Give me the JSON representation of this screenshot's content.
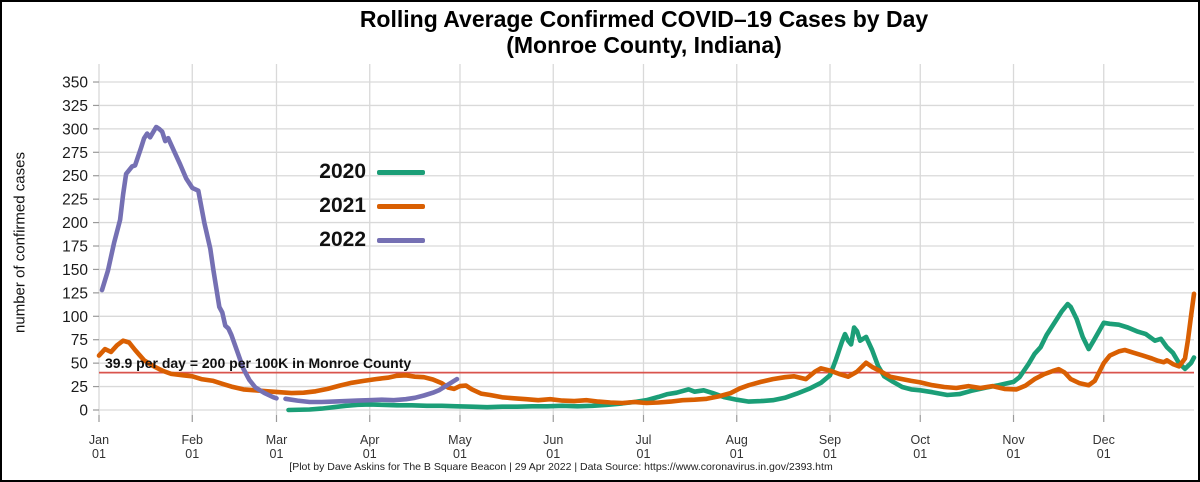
{
  "title": {
    "line1": "Rolling Average Confirmed COVID–19 Cases by Day",
    "line2": "(Monroe County, Indiana)"
  },
  "caption": "[Plot by Dave Askins for The B Square Beacon | 29 Apr 2022 | Data Source: https://www.coronavirus.in.gov/2393.htm",
  "annotation_text": "39.9 per day = 200 per 100K in Monroe County",
  "chart_data": {
    "type": "line",
    "title": "Rolling Average Confirmed COVID–19 Cases by Day (Monroe County, Indiana)",
    "xlabel": "",
    "ylabel": "number of confirmed cases",
    "ylim": [
      0,
      350
    ],
    "yticks": [
      0,
      25,
      50,
      75,
      100,
      125,
      150,
      175,
      200,
      225,
      250,
      275,
      300,
      325,
      350
    ],
    "grid": true,
    "legend_position": "inside-upper-left",
    "xticks": [
      {
        "month": "Jan",
        "day_label": "01",
        "day": 1
      },
      {
        "month": "Feb",
        "day_label": "01",
        "day": 32
      },
      {
        "month": "Mar",
        "day_label": "01",
        "day": 60
      },
      {
        "month": "Apr",
        "day_label": "01",
        "day": 91
      },
      {
        "month": "May",
        "day_label": "01",
        "day": 121
      },
      {
        "month": "Jun",
        "day_label": "01",
        "day": 152
      },
      {
        "month": "Jul",
        "day_label": "01",
        "day": 182
      },
      {
        "month": "Aug",
        "day_label": "01",
        "day": 213
      },
      {
        "month": "Sep",
        "day_label": "01",
        "day": 244
      },
      {
        "month": "Oct",
        "day_label": "01",
        "day": 274
      },
      {
        "month": "Nov",
        "day_label": "01",
        "day": 305
      },
      {
        "month": "Dec",
        "day_label": "01",
        "day": 335
      }
    ],
    "reference_line": {
      "value": 39.9,
      "color": "#d9544d",
      "label": "39.9 per day = 200 per 100K in Monroe County"
    },
    "series": [
      {
        "name": "2020",
        "color": "#1b9e77",
        "segments": [
          [
            [
              64,
              0
            ],
            [
              71,
              0.5
            ],
            [
              75,
              1.5
            ],
            [
              79,
              3
            ],
            [
              83,
              4.5
            ],
            [
              87,
              5.5
            ],
            [
              91,
              6
            ],
            [
              95,
              5.5
            ],
            [
              100,
              5
            ],
            [
              105,
              5
            ],
            [
              110,
              4.5
            ],
            [
              115,
              4.5
            ],
            [
              120,
              4
            ],
            [
              125,
              3.5
            ],
            [
              130,
              3
            ],
            [
              135,
              3.5
            ],
            [
              140,
              3.5
            ],
            [
              145,
              4
            ],
            [
              150,
              4
            ],
            [
              155,
              4.5
            ],
            [
              160,
              4
            ],
            [
              165,
              4.5
            ],
            [
              170,
              5.5
            ],
            [
              175,
              7
            ],
            [
              179,
              8.5
            ],
            [
              183,
              10.5
            ],
            [
              187,
              14
            ],
            [
              190,
              17
            ],
            [
              193,
              18.5
            ],
            [
              197,
              22
            ],
            [
              199,
              19.5
            ],
            [
              202,
              21
            ],
            [
              205,
              18
            ],
            [
              209,
              13.5
            ],
            [
              213,
              11
            ],
            [
              217,
              9
            ],
            [
              221,
              9.5
            ],
            [
              225,
              10.5
            ],
            [
              229,
              13
            ],
            [
              233,
              17.5
            ],
            [
              237,
              22.5
            ],
            [
              241,
              29
            ],
            [
              244,
              37
            ],
            [
              246,
              54
            ],
            [
              248,
              73
            ],
            [
              249,
              81
            ],
            [
              250,
              74
            ],
            [
              251,
              70
            ],
            [
              252,
              88
            ],
            [
              253,
              84
            ],
            [
              254,
              74
            ],
            [
              256,
              78
            ],
            [
              258,
              64
            ],
            [
              260,
              47
            ],
            [
              262,
              36
            ],
            [
              265,
              30
            ],
            [
              268,
              24.5
            ],
            [
              271,
              22
            ],
            [
              274,
              21
            ],
            [
              278,
              19
            ],
            [
              283,
              16
            ],
            [
              287,
              17
            ],
            [
              291,
              20.5
            ],
            [
              296,
              24
            ],
            [
              300,
              26.5
            ],
            [
              305,
              30
            ],
            [
              307,
              35
            ],
            [
              310,
              49
            ],
            [
              312,
              60
            ],
            [
              314,
              67
            ],
            [
              316,
              80
            ],
            [
              319,
              95
            ],
            [
              321,
              105
            ],
            [
              323,
              113
            ],
            [
              324,
              110
            ],
            [
              326,
              97
            ],
            [
              328,
              78
            ],
            [
              330,
              65
            ],
            [
              332,
              76
            ],
            [
              335,
              93
            ],
            [
              337,
              92
            ],
            [
              340,
              91
            ],
            [
              343,
              88
            ],
            [
              346,
              84
            ],
            [
              349,
              81
            ],
            [
              352,
              74
            ],
            [
              354,
              76
            ],
            [
              356,
              67
            ],
            [
              358,
              61
            ],
            [
              360,
              50
            ],
            [
              362,
              44
            ],
            [
              364,
              50
            ],
            [
              365,
              56
            ]
          ]
        ]
      },
      {
        "name": "2021",
        "color": "#d95f02",
        "segments": [
          [
            [
              1,
              58
            ],
            [
              3,
              65
            ],
            [
              5,
              62
            ],
            [
              7,
              69
            ],
            [
              9,
              74
            ],
            [
              11,
              72
            ],
            [
              13,
              64
            ],
            [
              16,
              53
            ],
            [
              19,
              47
            ],
            [
              22,
              42
            ],
            [
              25,
              38.5
            ],
            [
              29,
              37
            ],
            [
              32,
              36
            ],
            [
              35,
              33
            ],
            [
              39,
              31
            ],
            [
              42,
              28
            ],
            [
              45,
              25
            ],
            [
              49,
              22
            ],
            [
              53,
              21
            ],
            [
              57,
              20
            ],
            [
              61,
              19
            ],
            [
              65,
              18
            ],
            [
              69,
              18.5
            ],
            [
              73,
              20
            ],
            [
              77,
              22.5
            ],
            [
              81,
              26
            ],
            [
              85,
              29
            ],
            [
              89,
              31
            ],
            [
              93,
              33
            ],
            [
              97,
              34.5
            ],
            [
              100,
              36.5
            ],
            [
              103,
              37
            ],
            [
              106,
              35.5
            ],
            [
              109,
              35
            ],
            [
              112,
              32.5
            ],
            [
              115,
              28.5
            ],
            [
              117,
              24
            ],
            [
              119,
              22.5
            ],
            [
              121,
              25.5
            ],
            [
              123,
              26
            ],
            [
              125,
              22
            ],
            [
              128,
              17.5
            ],
            [
              131,
              16
            ],
            [
              135,
              13.5
            ],
            [
              139,
              12.5
            ],
            [
              143,
              11.5
            ],
            [
              147,
              10.5
            ],
            [
              151,
              11.5
            ],
            [
              155,
              10
            ],
            [
              159,
              9.5
            ],
            [
              163,
              10.5
            ],
            [
              167,
              9
            ],
            [
              171,
              8
            ],
            [
              175,
              7.5
            ],
            [
              179,
              8.5
            ],
            [
              183,
              7.5
            ],
            [
              187,
              8
            ],
            [
              191,
              9
            ],
            [
              195,
              10.5
            ],
            [
              199,
              11
            ],
            [
              203,
              12
            ],
            [
              207,
              14.5
            ],
            [
              211,
              18
            ],
            [
              214,
              23
            ],
            [
              217,
              26.5
            ],
            [
              221,
              30
            ],
            [
              225,
              33
            ],
            [
              229,
              35
            ],
            [
              232,
              36
            ],
            [
              236,
              33
            ],
            [
              239,
              41
            ],
            [
              241,
              44.5
            ],
            [
              244,
              42
            ],
            [
              247,
              38.5
            ],
            [
              250,
              35.5
            ],
            [
              253,
              41
            ],
            [
              256,
              50.5
            ],
            [
              258,
              46
            ],
            [
              261,
              41
            ],
            [
              264,
              35.5
            ],
            [
              268,
              33
            ],
            [
              271,
              31
            ],
            [
              274,
              29.5
            ],
            [
              278,
              26.5
            ],
            [
              282,
              24.5
            ],
            [
              286,
              23.5
            ],
            [
              290,
              25.5
            ],
            [
              294,
              23.5
            ],
            [
              298,
              25.5
            ],
            [
              302,
              22.5
            ],
            [
              306,
              22
            ],
            [
              309,
              26
            ],
            [
              312,
              33
            ],
            [
              315,
              38
            ],
            [
              318,
              41.5
            ],
            [
              320,
              43.5
            ],
            [
              322,
              40
            ],
            [
              324,
              33
            ],
            [
              327,
              28.5
            ],
            [
              330,
              26.5
            ],
            [
              332,
              31
            ],
            [
              335,
              50
            ],
            [
              337,
              58
            ],
            [
              340,
              62.5
            ],
            [
              342,
              64
            ],
            [
              345,
              61
            ],
            [
              348,
              58
            ],
            [
              351,
              55
            ],
            [
              353,
              52.5
            ],
            [
              355,
              51
            ],
            [
              356,
              53
            ],
            [
              358,
              49
            ],
            [
              360,
              46.5
            ],
            [
              362,
              55
            ],
            [
              363,
              75
            ],
            [
              364,
              100
            ],
            [
              365,
              124
            ]
          ]
        ]
      },
      {
        "name": "2022",
        "color": "#7570b3",
        "segments": [
          [
            [
              2,
              128
            ],
            [
              4,
              149
            ],
            [
              6,
              178
            ],
            [
              8,
              203
            ],
            [
              9,
              230
            ],
            [
              10,
              252
            ],
            [
              12,
              260
            ],
            [
              13,
              261
            ],
            [
              15,
              280
            ],
            [
              16,
              290
            ],
            [
              17,
              295
            ],
            [
              18,
              291
            ],
            [
              20,
              302
            ],
            [
              21,
              300
            ],
            [
              22,
              297
            ],
            [
              23,
              287
            ],
            [
              24,
              290
            ],
            [
              26,
              276
            ],
            [
              28,
              262
            ],
            [
              30,
              247
            ],
            [
              32,
              237
            ],
            [
              34,
              234
            ],
            [
              36,
              200
            ],
            [
              38,
              172
            ],
            [
              39,
              150
            ],
            [
              40,
              130
            ],
            [
              41,
              110
            ],
            [
              42,
              104
            ],
            [
              43,
              90
            ],
            [
              44,
              87
            ],
            [
              45,
              80
            ],
            [
              47,
              62
            ],
            [
              49,
              44
            ],
            [
              51,
              32
            ],
            [
              53,
              24
            ],
            [
              56,
              18
            ],
            [
              59,
              13.5
            ],
            [
              60,
              12.5
            ]
          ],
          [
            [
              63,
              12
            ],
            [
              67,
              10
            ],
            [
              71,
              8.5
            ],
            [
              75,
              8.5
            ],
            [
              79,
              9
            ],
            [
              83,
              9.5
            ],
            [
              87,
              10
            ],
            [
              91,
              10.5
            ],
            [
              95,
              11
            ],
            [
              99,
              10.5
            ],
            [
              103,
              11.5
            ],
            [
              106,
              13
            ],
            [
              109,
              15.5
            ],
            [
              112,
              18.5
            ],
            [
              114,
              21
            ],
            [
              116,
              25
            ],
            [
              118,
              29
            ],
            [
              120,
              33
            ]
          ]
        ]
      }
    ]
  }
}
